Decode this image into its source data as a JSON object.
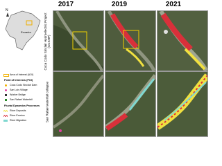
{
  "header": {
    "years": [
      "2017",
      "2019",
      "2021"
    ]
  },
  "rows": [
    "Coca Codo Sinclair Hydroelectric Project (CCSHP)",
    "San Rafael waterfall collapse"
  ],
  "inset_map": {
    "country": "Ecuador",
    "north": "N"
  },
  "legend": {
    "aoi": "Area of Interest (AOI)",
    "poi_title": "Point of Interests (POI)",
    "poi_items": [
      "Coca Codo Sinclair Dam",
      "San Luis Village",
      "Worker Bridge",
      "San Rafael Waterfall"
    ],
    "process_title": "Fluvial Dynamics Processes",
    "process_items": [
      "River Deposits",
      "River Erosion",
      "River Migration"
    ]
  }
}
